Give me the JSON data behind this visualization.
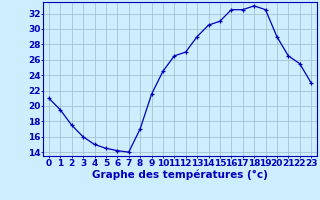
{
  "hours": [
    0,
    1,
    2,
    3,
    4,
    5,
    6,
    7,
    8,
    9,
    10,
    11,
    12,
    13,
    14,
    15,
    16,
    17,
    18,
    19,
    20,
    21,
    22,
    23
  ],
  "temps": [
    21.0,
    19.5,
    17.5,
    16.0,
    15.0,
    14.5,
    14.2,
    14.0,
    17.0,
    21.5,
    24.5,
    26.5,
    27.0,
    29.0,
    30.5,
    31.0,
    32.5,
    32.5,
    33.0,
    32.5,
    29.0,
    26.5,
    25.5,
    23.0
  ],
  "line_color": "#0000bb",
  "marker": "+",
  "bg_color": "#cceeff",
  "grid_color": "#99bbcc",
  "axis_color": "#0000bb",
  "xlabel": "Graphe des températures (°c)",
  "ylim": [
    13.5,
    33.5
  ],
  "yticks": [
    14,
    16,
    18,
    20,
    22,
    24,
    26,
    28,
    30,
    32
  ],
  "xlim": [
    -0.5,
    23.5
  ],
  "xlabel_color": "#0000bb",
  "tick_color": "#0000bb",
  "xlabel_fontsize": 7.5,
  "tick_fontsize": 6.5,
  "xlabel_fontweight": "bold"
}
